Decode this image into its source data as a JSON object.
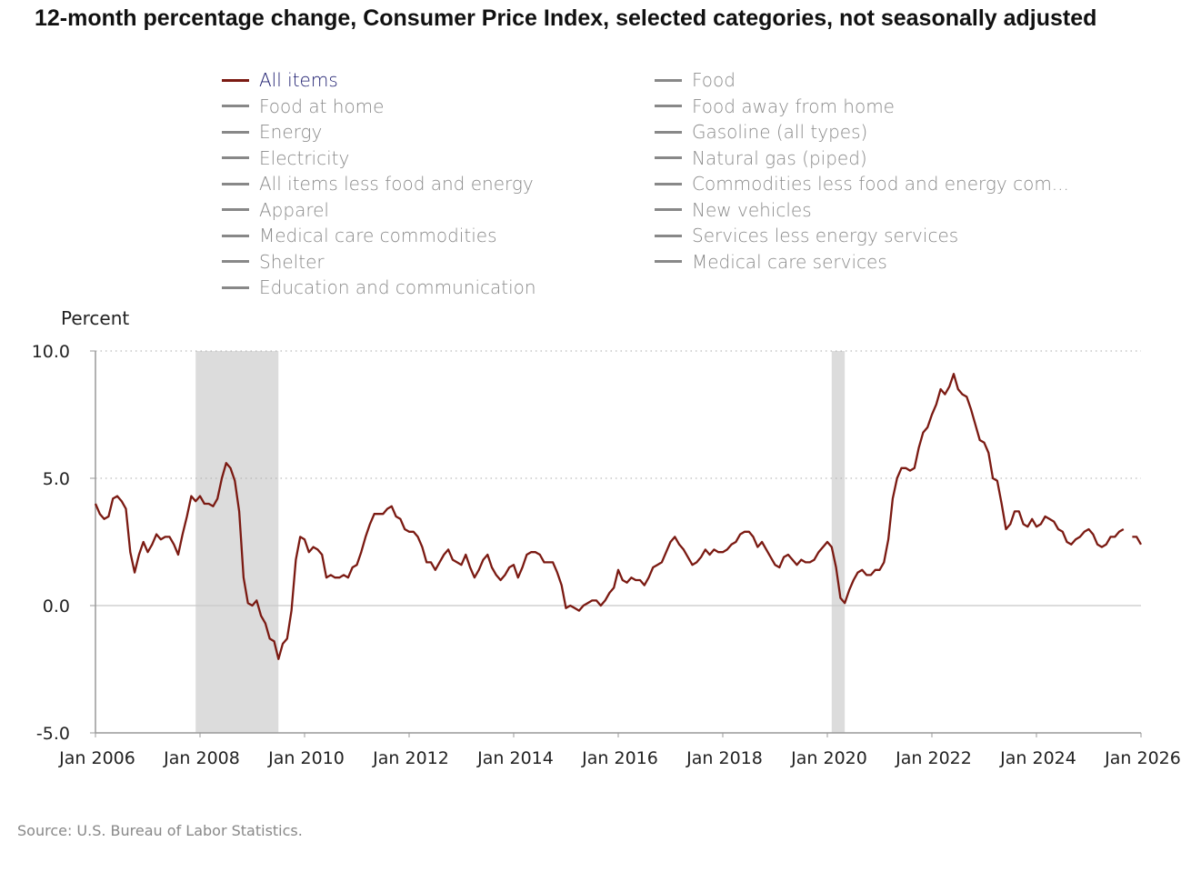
{
  "chart_data": {
    "type": "line",
    "title": "12-month percentage change, Consumer Price Index, selected categories, not seasonally adjusted",
    "ylabel": "Percent",
    "ylim": [
      -5,
      10
    ],
    "yticks": [
      "10.0",
      "5.0",
      "0.0",
      "-5.0"
    ],
    "yticks_values": [
      10,
      5,
      0,
      -5
    ],
    "xticks": [
      "Jan 2006",
      "Jan 2008",
      "Jan 2010",
      "Jan 2012",
      "Jan 2014",
      "Jan 2016",
      "Jan 2018",
      "Jan 2020",
      "Jan 2022",
      "Jan 2024",
      "Jan 2026"
    ],
    "x_start": "2006-01",
    "x_end": "2026-01",
    "grid": "horizontal dotted",
    "recessions": [
      [
        "2007-12",
        "2009-06"
      ],
      [
        "2020-02",
        "2020-04"
      ]
    ],
    "legend": {
      "placement": "top",
      "items": [
        "All items",
        "Food at home",
        "Energy",
        "Electricity",
        "All items less food and energy",
        "Apparel",
        "Medical care commodities",
        "Shelter",
        "Education and communication",
        "Food",
        "Food away from home",
        "Gasoline (all types)",
        "Natural gas (piped)",
        "Commodities less food and energy com...",
        "New vehicles",
        "Services less energy services",
        "Medical care services"
      ],
      "active": "All items"
    },
    "series": [
      {
        "name": "All items",
        "color": "#7b1a12",
        "values": [
          4.0,
          3.6,
          3.4,
          3.5,
          4.2,
          4.3,
          4.1,
          3.8,
          2.1,
          1.3,
          2.0,
          2.5,
          2.1,
          2.4,
          2.8,
          2.6,
          2.7,
          2.7,
          2.4,
          2.0,
          2.8,
          3.5,
          4.3,
          4.1,
          4.3,
          4.0,
          4.0,
          3.9,
          4.2,
          5.0,
          5.6,
          5.4,
          4.9,
          3.7,
          1.1,
          0.1,
          0.0,
          0.2,
          -0.4,
          -0.7,
          -1.3,
          -1.4,
          -2.1,
          -1.5,
          -1.3,
          -0.2,
          1.8,
          2.7,
          2.6,
          2.1,
          2.3,
          2.2,
          2.0,
          1.1,
          1.2,
          1.1,
          1.1,
          1.2,
          1.1,
          1.5,
          1.6,
          2.1,
          2.7,
          3.2,
          3.6,
          3.6,
          3.6,
          3.8,
          3.9,
          3.5,
          3.4,
          3.0,
          2.9,
          2.9,
          2.7,
          2.3,
          1.7,
          1.7,
          1.4,
          1.7,
          2.0,
          2.2,
          1.8,
          1.7,
          1.6,
          2.0,
          1.5,
          1.1,
          1.4,
          1.8,
          2.0,
          1.5,
          1.2,
          1.0,
          1.2,
          1.5,
          1.6,
          1.1,
          1.5,
          2.0,
          2.1,
          2.1,
          2.0,
          1.7,
          1.7,
          1.7,
          1.3,
          0.8,
          -0.1,
          0.0,
          -0.1,
          -0.2,
          0.0,
          0.1,
          0.2,
          0.2,
          0.0,
          0.2,
          0.5,
          0.7,
          1.4,
          1.0,
          0.9,
          1.1,
          1.0,
          1.0,
          0.8,
          1.1,
          1.5,
          1.6,
          1.7,
          2.1,
          2.5,
          2.7,
          2.4,
          2.2,
          1.9,
          1.6,
          1.7,
          1.9,
          2.2,
          2.0,
          2.2,
          2.1,
          2.1,
          2.2,
          2.4,
          2.5,
          2.8,
          2.9,
          2.9,
          2.7,
          2.3,
          2.5,
          2.2,
          1.9,
          1.6,
          1.5,
          1.9,
          2.0,
          1.8,
          1.6,
          1.8,
          1.7,
          1.7,
          1.8,
          2.1,
          2.3,
          2.5,
          2.3,
          1.5,
          0.3,
          0.1,
          0.6,
          1.0,
          1.3,
          1.4,
          1.2,
          1.2,
          1.4,
          1.4,
          1.7,
          2.6,
          4.2,
          5.0,
          5.4,
          5.4,
          5.3,
          5.4,
          6.2,
          6.8,
          7.0,
          7.5,
          7.9,
          8.5,
          8.3,
          8.6,
          9.1,
          8.5,
          8.3,
          8.2,
          7.7,
          7.1,
          6.5,
          6.4,
          6.0,
          5.0,
          4.9,
          4.0,
          3.0,
          3.2,
          3.7,
          3.7,
          3.2,
          3.1,
          3.4,
          3.1,
          3.2,
          3.5,
          3.4,
          3.3,
          3.0,
          2.9,
          2.5,
          2.4,
          2.6,
          2.7,
          2.9,
          3.0,
          2.8,
          2.4,
          2.3,
          2.4,
          2.7,
          2.7,
          2.9,
          3.0,
          null,
          2.7,
          2.7,
          2.4
        ]
      }
    ]
  },
  "source": "Source: U.S. Bureau of Labor Statistics."
}
